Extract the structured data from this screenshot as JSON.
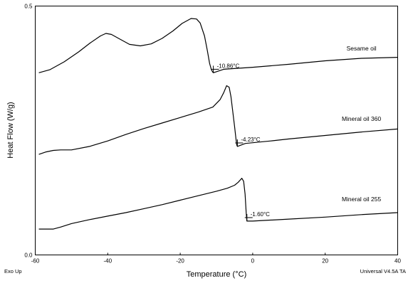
{
  "chart_data": {
    "type": "line",
    "xlabel": "Temperature (°C)",
    "ylabel": "Heat Flow (W/g)",
    "xlim": [
      -60,
      40
    ],
    "ylim": [
      0.0,
      0.5
    ],
    "x_ticks": [
      -60,
      -40,
      -20,
      0,
      20,
      40
    ],
    "x_tick_labels": [
      "-60",
      "-40",
      "-20",
      "0",
      "20",
      "40"
    ],
    "y_ticks": [
      0.0,
      0.5
    ],
    "y_tick_labels": [
      "0.0",
      "0.5"
    ],
    "grid": false,
    "notes": {
      "bottom_left": "Exo Up",
      "bottom_right": "Universal V4.5A TA"
    },
    "series": [
      {
        "name": "Sesame oil",
        "x": [
          -59,
          -56,
          -52,
          -48,
          -45,
          -42,
          -40.5,
          -39,
          -37,
          -34,
          -31,
          -28,
          -25,
          -22,
          -19.5,
          -17,
          -15.5,
          -14.5,
          -13.3,
          -12.5,
          -11.9,
          -11.4,
          -11.0,
          -10.86,
          -8,
          0,
          10,
          20,
          30,
          40
        ],
        "y": [
          0.366,
          0.372,
          0.388,
          0.408,
          0.425,
          0.44,
          0.445,
          0.443,
          0.435,
          0.423,
          0.42,
          0.424,
          0.435,
          0.45,
          0.465,
          0.475,
          0.474,
          0.466,
          0.44,
          0.41,
          0.385,
          0.372,
          0.367,
          0.366,
          0.373,
          0.377,
          0.383,
          0.39,
          0.395,
          0.397
        ],
        "label_position": {
          "x": 30,
          "y": 0.411
        },
        "annotation": {
          "label": "-10.86°C",
          "x": -10.86,
          "y": 0.373
        }
      },
      {
        "name": "Mineral oil 360",
        "x": [
          -59,
          -57,
          -55,
          -53,
          -50,
          -45,
          -40,
          -35,
          -30,
          -25,
          -20,
          -15,
          -11,
          -9,
          -8,
          -7.2,
          -6.5,
          -6,
          -5.5,
          -5,
          -4.6,
          -4.4,
          -4.23,
          -2,
          5,
          10,
          20,
          30,
          40
        ],
        "y": [
          0.202,
          0.207,
          0.21,
          0.211,
          0.211,
          0.218,
          0.229,
          0.242,
          0.254,
          0.265,
          0.276,
          0.287,
          0.297,
          0.312,
          0.326,
          0.34,
          0.337,
          0.318,
          0.288,
          0.258,
          0.232,
          0.221,
          0.218,
          0.224,
          0.229,
          0.233,
          0.24,
          0.247,
          0.253
        ],
        "label_position": {
          "x": 30,
          "y": 0.269
        },
        "annotation": {
          "label": "-4.23°C",
          "x": -4.23,
          "y": 0.225
        }
      },
      {
        "name": "Mineral oil 255",
        "x": [
          -59,
          -55,
          -53,
          -50,
          -45,
          -40,
          -35,
          -30,
          -25,
          -20,
          -15,
          -10,
          -7,
          -5,
          -4,
          -3,
          -2.5,
          -2.1,
          -1.8,
          -1.6,
          0,
          10,
          20,
          30,
          40
        ],
        "y": [
          0.052,
          0.052,
          0.056,
          0.063,
          0.071,
          0.078,
          0.085,
          0.093,
          0.101,
          0.11,
          0.119,
          0.128,
          0.134,
          0.14,
          0.146,
          0.154,
          0.148,
          0.122,
          0.085,
          0.068,
          0.068,
          0.072,
          0.076,
          0.081,
          0.085
        ],
        "label_position": {
          "x": 30,
          "y": 0.108
        },
        "annotation": {
          "label": "-1.60°C",
          "x": -1.6,
          "y": 0.075
        }
      }
    ]
  }
}
